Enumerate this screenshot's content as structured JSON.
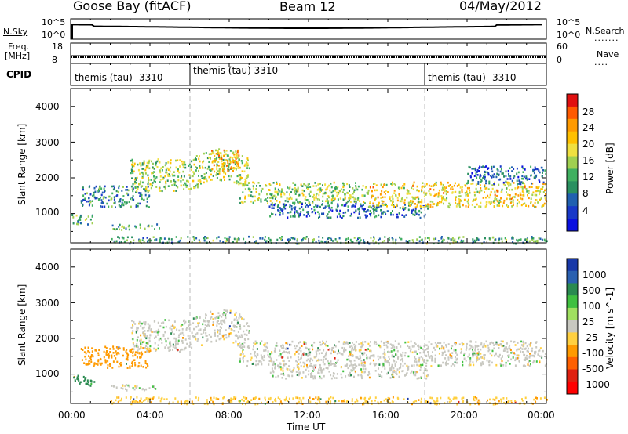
{
  "header": {
    "station": "Goose Bay (fitACF)",
    "beam": "Beam 12",
    "date": "04/May/2012"
  },
  "strips": {
    "nsky_label": "N.Sky",
    "nsky_ticks": [
      "10^5",
      "10^0"
    ],
    "nsearch_label": "N.Search",
    "nsearch_ticks": [
      "10^5",
      "10^0"
    ],
    "freq_label_1": "Freq.",
    "freq_label_2": "[MHz]",
    "freq_ticks": [
      "18",
      "8"
    ],
    "nave_label": "Nave",
    "nave_ticks": [
      "60",
      "0"
    ],
    "cpid_label": "CPID",
    "cpid_segments": [
      "themis (tau) -3310",
      "themis (tau) 3310",
      "themis (tau) -3310"
    ]
  },
  "chart_data": [
    {
      "type": "heatmap",
      "title": "Power",
      "ylabel": "Slant Range [km]",
      "xlabel": "Time UT",
      "x_ticks": [
        "00:00",
        "04:00",
        "08:00",
        "12:00",
        "16:00",
        "20:00",
        "00:00"
      ],
      "y_ticks": [
        1000,
        2000,
        3000,
        4000
      ],
      "ylim": [
        180,
        4500
      ],
      "colorbar_label": "Power [dB]",
      "colorbar_ticks": [
        "28",
        "24",
        "20",
        "16",
        "12",
        "8",
        "4"
      ],
      "colorbar_colors": [
        "#e01010",
        "#ff5a00",
        "#ff9a00",
        "#ffc000",
        "#f0e040",
        "#a0d050",
        "#40b060",
        "#2a9060",
        "#2060b0",
        "#1838c8",
        "#0a10e0"
      ],
      "scatter_bands": [
        {
          "t_start": 0.0,
          "t_end": 1.2,
          "range_center": 850,
          "range_width": 150,
          "power": 10
        },
        {
          "t_start": 0.5,
          "t_end": 4.0,
          "range_center": 1500,
          "range_width": 300,
          "power": 8
        },
        {
          "t_start": 2.0,
          "t_end": 4.5,
          "range_center": 650,
          "range_width": 80,
          "power": 10
        },
        {
          "t_start": 3.0,
          "t_end": 9.0,
          "range_center": 2100,
          "range_width": 450,
          "power": 14
        },
        {
          "t_start": 7.0,
          "t_end": 8.5,
          "range_center": 2500,
          "range_width": 300,
          "power": 20
        },
        {
          "t_start": 8.5,
          "t_end": 15.0,
          "range_center": 1600,
          "range_width": 300,
          "power": 14
        },
        {
          "t_start": 10.0,
          "t_end": 18.0,
          "range_center": 1100,
          "range_width": 200,
          "power": 6
        },
        {
          "t_start": 15.0,
          "t_end": 24.0,
          "range_center": 1550,
          "range_width": 350,
          "power": 18
        },
        {
          "t_start": 20.0,
          "t_end": 24.0,
          "range_center": 2100,
          "range_width": 250,
          "power": 6
        },
        {
          "t_start": 2.0,
          "t_end": 24.0,
          "range_center": 280,
          "range_width": 100,
          "power": 10
        }
      ]
    },
    {
      "type": "heatmap",
      "title": "Velocity",
      "ylabel": "Slant Range [km]",
      "xlabel": "Time UT",
      "x_ticks": [
        "00:00",
        "04:00",
        "08:00",
        "12:00",
        "16:00",
        "20:00",
        "00:00"
      ],
      "y_ticks": [
        1000,
        2000,
        3000,
        4000
      ],
      "ylim": [
        180,
        4500
      ],
      "colorbar_label": "Velocity [m s^-1]",
      "colorbar_ticks": [
        "1000",
        "500",
        "100",
        "25",
        "-25",
        "-100",
        "-500",
        "-1000"
      ],
      "colorbar_colors": [
        "#1838a8",
        "#2a60b0",
        "#2a8a50",
        "#40c040",
        "#a0e060",
        "#c8c8c0",
        "#ffd040",
        "#ff9a00",
        "#ff6000",
        "#e02010",
        "#ff0000"
      ],
      "scatter_bands": [
        {
          "t_start": 0.0,
          "t_end": 1.2,
          "range_center": 850,
          "range_width": 150,
          "velocity": 200
        },
        {
          "t_start": 0.5,
          "t_end": 4.0,
          "range_center": 1500,
          "range_width": 300,
          "velocity": -300
        },
        {
          "t_start": 2.0,
          "t_end": 4.5,
          "range_center": 650,
          "range_width": 80,
          "velocity": 0
        },
        {
          "t_start": 3.0,
          "t_end": 9.0,
          "range_center": 2100,
          "range_width": 450,
          "velocity": 0
        },
        {
          "t_start": 8.5,
          "t_end": 24.0,
          "range_center": 1600,
          "range_width": 350,
          "velocity": 0
        },
        {
          "t_start": 10.0,
          "t_end": 18.0,
          "range_center": 1100,
          "range_width": 200,
          "velocity": 0
        },
        {
          "t_start": 2.0,
          "t_end": 24.0,
          "range_center": 280,
          "range_width": 100,
          "velocity": -80
        }
      ]
    }
  ]
}
